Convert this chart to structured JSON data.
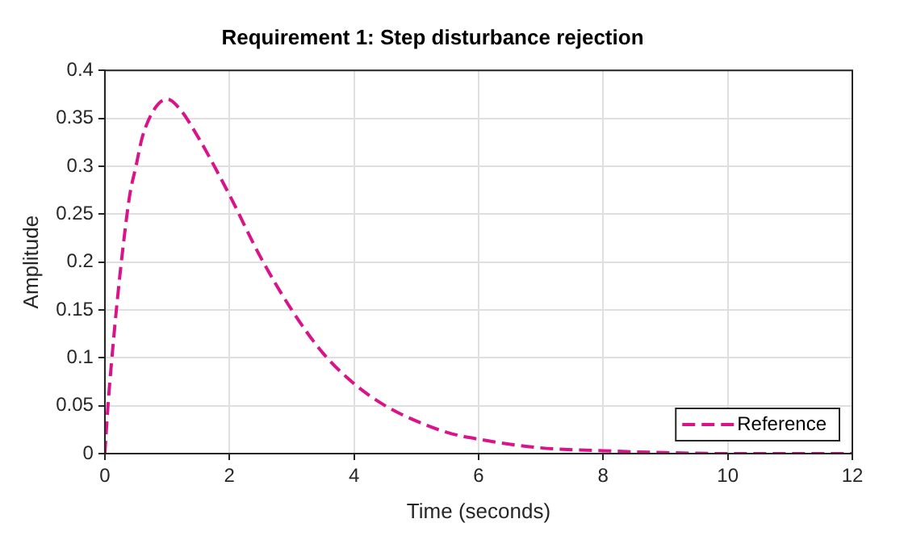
{
  "chart_data": {
    "type": "line",
    "title": "Requirement 1: Step disturbance rejection",
    "xlabel": "Time (seconds)",
    "ylabel": "Amplitude",
    "x": [
      0,
      0.05,
      0.1,
      0.2,
      0.3,
      0.4,
      0.5,
      0.6,
      0.8,
      1,
      1.2,
      1.5,
      2,
      2.5,
      3,
      3.5,
      4,
      4.5,
      5,
      5.5,
      6,
      7,
      8,
      9,
      10,
      11,
      12
    ],
    "series": [
      {
        "name": "Reference",
        "color": "#d9138a",
        "line_style": "dashed",
        "values": [
          0,
          0.05,
          0.09,
          0.16,
          0.22,
          0.27,
          0.3,
          0.33,
          0.36,
          0.37,
          0.36,
          0.33,
          0.27,
          0.205,
          0.15,
          0.105,
          0.073,
          0.05,
          0.034,
          0.022,
          0.015,
          0.006,
          0.003,
          0.001,
          0,
          0,
          0
        ]
      }
    ],
    "xlim": [
      0,
      12
    ],
    "xticks": [
      0,
      2,
      4,
      6,
      8,
      10,
      12
    ],
    "ylim": [
      0,
      0.4
    ],
    "yticks": [
      0,
      0.05,
      0.1,
      0.15,
      0.2,
      0.25,
      0.3,
      0.35,
      0.4
    ],
    "grid": true,
    "legend": "bottom right",
    "marker": "none"
  }
}
